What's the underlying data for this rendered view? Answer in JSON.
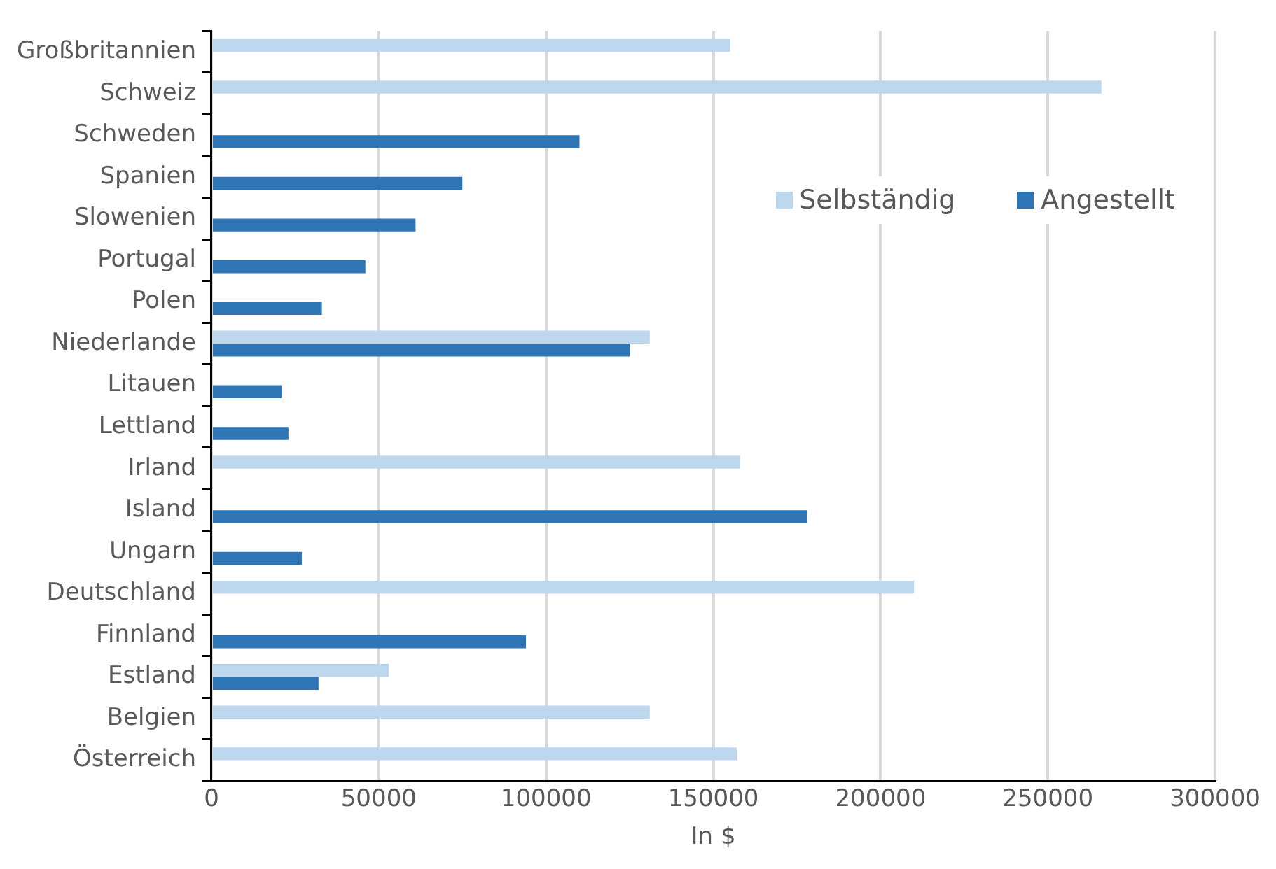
{
  "chart_data": {
    "type": "bar",
    "orientation": "horizontal",
    "xlabel": "In $",
    "categories": [
      "Großbritannien",
      "Schweiz",
      "Schweden",
      "Spanien",
      "Slowenien",
      "Portugal",
      "Polen",
      "Niederlande",
      "Litauen",
      "Lettland",
      "Irland",
      "Island",
      "Ungarn",
      "Deutschland",
      "Finnland",
      "Estland",
      "Belgien",
      "Österreich"
    ],
    "series": [
      {
        "name": "Selbständig",
        "color": "#bdd7ee",
        "values": [
          155000,
          266000,
          null,
          null,
          null,
          null,
          null,
          131000,
          null,
          null,
          158000,
          null,
          null,
          210000,
          null,
          53000,
          131000,
          157000
        ]
      },
      {
        "name": "Angestellt",
        "color": "#2e75b6",
        "values": [
          null,
          null,
          110000,
          75000,
          61000,
          46000,
          33000,
          125000,
          21000,
          23000,
          null,
          178000,
          27000,
          null,
          94000,
          32000,
          null,
          null
        ]
      }
    ],
    "xlim": [
      0,
      300000
    ],
    "xticks": [
      0,
      50000,
      100000,
      150000,
      200000,
      250000,
      300000
    ],
    "grid": "x",
    "legend": "right"
  }
}
